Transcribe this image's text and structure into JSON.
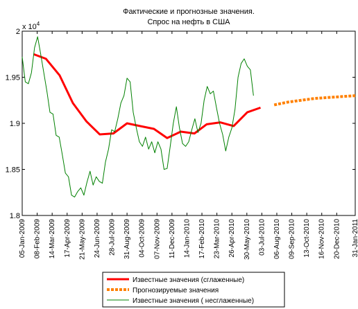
{
  "chart_data": {
    "type": "line",
    "title": [
      "Фактические и прогнозные значения.",
      "Спрос на нефть в США"
    ],
    "multiplier": {
      "base": "x 10",
      "exponent": "4"
    },
    "xlim": [
      "2009-01-05",
      "2011-01-31"
    ],
    "xticks": [
      {
        "value": "2009-01-05",
        "label": "05-Jan-2009"
      },
      {
        "value": "2009-02-08",
        "label": "08-Feb-2009"
      },
      {
        "value": "2009-03-14",
        "label": "14-Mar-2009"
      },
      {
        "value": "2009-04-17",
        "label": "17-Apr-2009"
      },
      {
        "value": "2009-05-21",
        "label": "21-May-2009"
      },
      {
        "value": "2009-06-24",
        "label": "24-Jun-2009"
      },
      {
        "value": "2009-07-28",
        "label": "28-Jul-2009"
      },
      {
        "value": "2009-08-31",
        "label": "31-Aug-2009"
      },
      {
        "value": "2009-10-04",
        "label": "04-Oct-2009"
      },
      {
        "value": "2009-11-07",
        "label": "07-Nov-2009"
      },
      {
        "value": "2009-12-11",
        "label": "11-Dec-2009"
      },
      {
        "value": "2010-01-14",
        "label": "14-Jan-2010"
      },
      {
        "value": "2010-02-17",
        "label": "17-Feb-2010"
      },
      {
        "value": "2010-03-23",
        "label": "23-Mar-2010"
      },
      {
        "value": "2010-04-26",
        "label": "26-Apr-2010"
      },
      {
        "value": "2010-05-30",
        "label": "30-May-2010"
      },
      {
        "value": "2010-07-03",
        "label": "03-Jul-2010"
      },
      {
        "value": "2010-08-06",
        "label": "06-Aug-2010"
      },
      {
        "value": "2010-09-09",
        "label": "09-Sep-2010"
      },
      {
        "value": "2010-10-13",
        "label": "13-Oct-2010"
      },
      {
        "value": "2010-11-16",
        "label": "16-Nov-2010"
      },
      {
        "value": "2010-12-20",
        "label": "20-Dec-2010"
      },
      {
        "value": "2011-01-31",
        "label": "31-Jan-2011"
      }
    ],
    "ylim": [
      1.8,
      2
    ],
    "yticks": [
      1.8,
      1.85,
      1.9,
      1.95,
      2
    ],
    "legend": "bottom",
    "series": [
      {
        "name": "Известные значения (сглаженные)",
        "color": "#ff0000",
        "width": 3,
        "dashed": false,
        "x": [
          "2009-01-31",
          "2009-02-28",
          "2009-03-31",
          "2009-04-30",
          "2009-05-31",
          "2009-06-30",
          "2009-07-31",
          "2009-08-31",
          "2009-09-30",
          "2009-10-31",
          "2009-11-30",
          "2009-12-31",
          "2010-01-31",
          "2010-02-28",
          "2010-03-31",
          "2010-04-30",
          "2010-05-31",
          "2010-06-30"
        ],
        "values": [
          1.975,
          1.97,
          1.952,
          1.922,
          1.902,
          1.888,
          1.889,
          1.9,
          1.897,
          1.894,
          1.884,
          1.891,
          1.889,
          1.899,
          1.901,
          1.897,
          1.912,
          1.917
        ]
      },
      {
        "name": "Прогнозируемые значения",
        "color": "#ff8000",
        "width": 4,
        "dashed": true,
        "x": [
          "2010-07-31",
          "2010-08-31",
          "2010-09-30",
          "2010-10-31",
          "2010-11-30",
          "2010-12-31",
          "2011-01-31"
        ],
        "values": [
          1.92,
          1.923,
          1.925,
          1.927,
          1.928,
          1.929,
          1.93
        ]
      },
      {
        "name": "Известные значения ( несглаженные)",
        "color": "#008000",
        "width": 1,
        "dashed": false,
        "x": [
          "2009-01-05",
          "2009-01-12",
          "2009-01-19",
          "2009-01-26",
          "2009-02-02",
          "2009-02-09",
          "2009-02-16",
          "2009-02-23",
          "2009-03-02",
          "2009-03-09",
          "2009-03-16",
          "2009-03-23",
          "2009-03-30",
          "2009-04-06",
          "2009-04-13",
          "2009-04-20",
          "2009-04-27",
          "2009-05-04",
          "2009-05-11",
          "2009-05-18",
          "2009-05-25",
          "2009-06-01",
          "2009-06-08",
          "2009-06-15",
          "2009-06-22",
          "2009-06-29",
          "2009-07-06",
          "2009-07-13",
          "2009-07-20",
          "2009-07-27",
          "2009-08-03",
          "2009-08-10",
          "2009-08-17",
          "2009-08-24",
          "2009-08-31",
          "2009-09-07",
          "2009-09-14",
          "2009-09-21",
          "2009-09-28",
          "2009-10-05",
          "2009-10-12",
          "2009-10-19",
          "2009-10-26",
          "2009-11-02",
          "2009-11-09",
          "2009-11-16",
          "2009-11-23",
          "2009-11-30",
          "2009-12-07",
          "2009-12-14",
          "2009-12-21",
          "2009-12-28",
          "2010-01-04",
          "2010-01-11",
          "2010-01-18",
          "2010-01-25",
          "2010-02-01",
          "2010-02-08",
          "2010-02-15",
          "2010-02-22",
          "2010-03-01",
          "2010-03-08",
          "2010-03-15",
          "2010-03-22",
          "2010-03-29",
          "2010-04-05",
          "2010-04-12",
          "2010-04-19",
          "2010-04-26",
          "2010-05-03",
          "2010-05-10",
          "2010-05-17",
          "2010-05-24",
          "2010-05-31",
          "2010-06-07",
          "2010-06-14"
        ],
        "values": [
          1.972,
          1.945,
          1.943,
          1.955,
          1.982,
          1.994,
          1.975,
          1.955,
          1.935,
          1.912,
          1.91,
          1.887,
          1.885,
          1.866,
          1.846,
          1.842,
          1.822,
          1.82,
          1.826,
          1.83,
          1.822,
          1.836,
          1.848,
          1.833,
          1.842,
          1.837,
          1.835,
          1.858,
          1.872,
          1.893,
          1.891,
          1.905,
          1.922,
          1.93,
          1.949,
          1.945,
          1.912,
          1.895,
          1.88,
          1.875,
          1.885,
          1.872,
          1.88,
          1.868,
          1.88,
          1.872,
          1.85,
          1.851,
          1.875,
          1.9,
          1.918,
          1.895,
          1.878,
          1.875,
          1.88,
          1.893,
          1.905,
          1.89,
          1.9,
          1.925,
          1.94,
          1.932,
          1.935,
          1.917,
          1.9,
          1.888,
          1.87,
          1.885,
          1.895,
          1.915,
          1.95,
          1.965,
          1.97,
          1.962,
          1.958,
          1.93
        ]
      }
    ]
  }
}
